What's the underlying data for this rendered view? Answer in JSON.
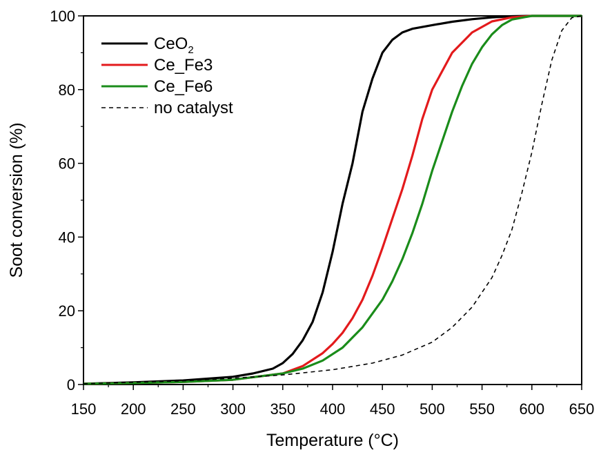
{
  "chart_data": {
    "type": "line",
    "title": "",
    "xlabel": "Temperature (°C)",
    "ylabel": "Soot conversion (%)",
    "xlim": [
      150,
      650
    ],
    "ylim": [
      0,
      100
    ],
    "xticks": [
      "150",
      "200",
      "250",
      "300",
      "350",
      "400",
      "450",
      "500",
      "550",
      "600",
      "650"
    ],
    "yticks": [
      "0",
      "20",
      "40",
      "60",
      "80",
      "100"
    ],
    "grid": false,
    "legend_position": "top-left",
    "series": [
      {
        "name": "CeO2",
        "name_main": "CeO",
        "name_sub": "2",
        "color": "#000000",
        "dash": "solid",
        "x": [
          150,
          200,
          250,
          300,
          320,
          340,
          350,
          360,
          370,
          380,
          390,
          400,
          410,
          420,
          430,
          440,
          450,
          460,
          470,
          480,
          500,
          520,
          540,
          560,
          580,
          600,
          620,
          650
        ],
        "y": [
          0.2,
          0.6,
          1.1,
          2.1,
          3.0,
          4.3,
          5.8,
          8.3,
          12.0,
          17.0,
          25.0,
          36.0,
          49.0,
          60.0,
          74.0,
          83.0,
          90.0,
          93.5,
          95.5,
          96.5,
          97.5,
          98.4,
          99.1,
          99.6,
          99.9,
          100,
          100,
          100
        ]
      },
      {
        "name": "Ce_Fe3",
        "color": "#e31a1c",
        "dash": "solid",
        "x": [
          150,
          200,
          250,
          300,
          350,
          370,
          390,
          400,
          410,
          420,
          430,
          440,
          450,
          460,
          470,
          480,
          490,
          500,
          520,
          540,
          560,
          580,
          600,
          650
        ],
        "y": [
          0.2,
          0.4,
          0.7,
          1.3,
          3.0,
          5.0,
          8.5,
          11.0,
          14.0,
          18.0,
          23.0,
          29.5,
          37.0,
          45.0,
          53.0,
          62.0,
          72.0,
          80.0,
          90.0,
          95.5,
          98.5,
          99.6,
          100,
          100
        ]
      },
      {
        "name": "Ce_Fe6",
        "color": "#1a8c1a",
        "dash": "solid",
        "x": [
          150,
          200,
          250,
          300,
          350,
          370,
          390,
          410,
          430,
          450,
          460,
          470,
          480,
          490,
          500,
          510,
          520,
          530,
          540,
          550,
          560,
          570,
          580,
          600,
          650
        ],
        "y": [
          0.2,
          0.4,
          0.7,
          1.3,
          3.0,
          4.3,
          6.5,
          10.0,
          15.5,
          23.0,
          28.0,
          34.0,
          41.0,
          49.0,
          58.0,
          66.0,
          74.0,
          81.0,
          87.0,
          91.5,
          95.0,
          97.5,
          99.0,
          100,
          100
        ]
      },
      {
        "name": "no catalyst",
        "color": "#000000",
        "dash": "dashed",
        "x": [
          150,
          200,
          250,
          300,
          350,
          400,
          440,
          470,
          500,
          520,
          540,
          560,
          570,
          580,
          590,
          600,
          610,
          620,
          630,
          640,
          650
        ],
        "y": [
          0.2,
          0.6,
          1.0,
          1.7,
          2.6,
          4.0,
          5.8,
          8.0,
          11.5,
          15.5,
          21.0,
          29.0,
          35.0,
          42.0,
          52.0,
          63.0,
          76.0,
          88.0,
          96.0,
          99.5,
          100
        ]
      }
    ]
  }
}
